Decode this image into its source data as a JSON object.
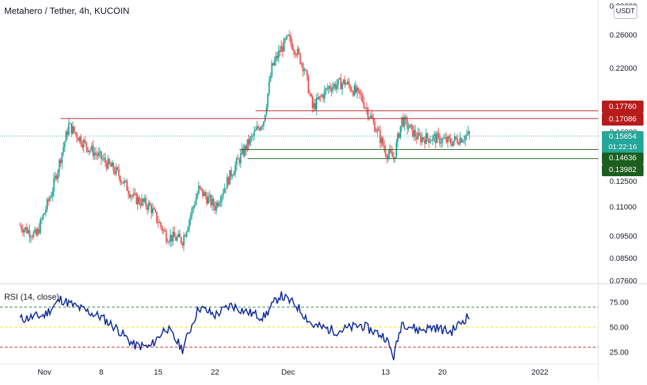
{
  "header": {
    "title": "Metahero / Tether, 4h, KUCOIN",
    "currency": "USDT",
    "rsi_title": "RSI (14, close)"
  },
  "price_badges": {
    "res1": "0.17760",
    "res2": "0.17086",
    "last_price": "0.15654",
    "countdown": "01:22:16",
    "sup1": "0.14636",
    "sup2": "0.13982"
  },
  "colors": {
    "up": "#26a69a",
    "down": "#ef5350",
    "resistance": "#b71c1c",
    "support": "#1b5e20",
    "last_price": "#26a69a",
    "rsi_line": "#0d2a9b",
    "rsi_mid": "#f5e50a",
    "rsi_upper": "#2e7d32",
    "rsi_lower": "#c62828"
  },
  "chart_data": [
    {
      "type": "candlestick",
      "title": "Metahero / Tether, 4h, KUCOIN",
      "x_tick_labels": [
        "Nov",
        "8",
        "15",
        "22",
        "Dec",
        "13",
        "20",
        "2022"
      ],
      "y_tick_labels": [
        "0.30000",
        "0.26000",
        "0.22000",
        "0.16000",
        "0.12500",
        "0.11000",
        "0.09500",
        "0.08500",
        "0.07600"
      ],
      "yscale": "log",
      "grid": false,
      "series": [
        {
          "name": "close",
          "x": [
            "Oct 29",
            "Oct 31",
            "Nov 2",
            "Nov 4",
            "Nov 6",
            "Nov 8",
            "Nov 10",
            "Nov 12",
            "Nov 14",
            "Nov 16",
            "Nov 18",
            "Nov 20",
            "Nov 22",
            "Nov 24",
            "Nov 26",
            "Nov 28",
            "Nov 29",
            "Nov 30",
            "Dec 1",
            "Dec 2",
            "Dec 3",
            "Dec 4",
            "Dec 6",
            "Dec 8",
            "Dec 10",
            "Dec 12",
            "Dec 13",
            "Dec 14",
            "Dec 15",
            "Dec 17",
            "Dec 19",
            "Dec 21",
            "Dec 23"
          ],
          "values": [
            0.1,
            0.095,
            0.12,
            0.165,
            0.15,
            0.14,
            0.13,
            0.115,
            0.11,
            0.095,
            0.093,
            0.12,
            0.11,
            0.13,
            0.15,
            0.17,
            0.22,
            0.24,
            0.255,
            0.24,
            0.22,
            0.18,
            0.2,
            0.205,
            0.19,
            0.16,
            0.145,
            0.14,
            0.17,
            0.155,
            0.155,
            0.152,
            0.157
          ]
        }
      ],
      "horizontal_levels": [
        0.1776,
        0.17086,
        0.14636,
        0.13982
      ],
      "last_price": 0.15654
    },
    {
      "type": "line",
      "title": "RSI (14, close)",
      "y_tick_labels": [
        "75.00",
        "50.00",
        "25.00"
      ],
      "ylim": [
        15,
        90
      ],
      "levels": [
        70,
        50,
        30
      ],
      "series": [
        {
          "name": "RSI (14, close)",
          "x": [
            "Oct 29",
            "Nov 1",
            "Nov 3",
            "Nov 5",
            "Nov 8",
            "Nov 10",
            "Nov 12",
            "Nov 14",
            "Nov 16",
            "Nov 18",
            "Nov 20",
            "Nov 22",
            "Nov 24",
            "Nov 26",
            "Nov 28",
            "Nov 30",
            "Dec 2",
            "Dec 4",
            "Dec 7",
            "Dec 10",
            "Dec 13",
            "Dec 14",
            "Dec 15",
            "Dec 17",
            "Dec 19",
            "Dec 21",
            "Dec 23"
          ],
          "values": [
            58,
            62,
            78,
            70,
            60,
            48,
            32,
            30,
            50,
            28,
            70,
            62,
            72,
            65,
            60,
            82,
            72,
            52,
            46,
            52,
            40,
            20,
            55,
            47,
            50,
            45,
            60
          ]
        }
      ]
    }
  ]
}
